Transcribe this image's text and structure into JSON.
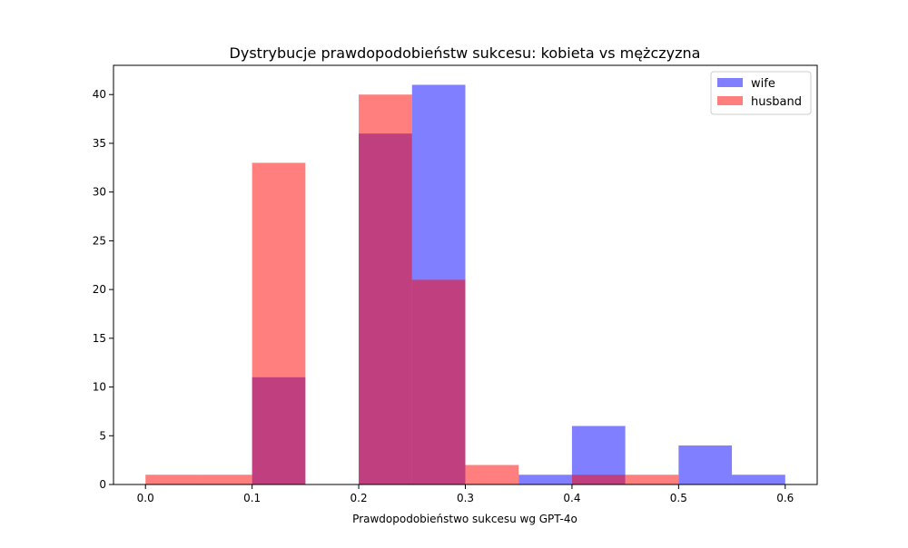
{
  "chart_data": {
    "type": "bar",
    "title": "Dystrybucje prawdopodobieństw sukcesu: kobieta vs mężczyzna",
    "xlabel": "Prawdopodobieństwo sukcesu wg GPT-4o",
    "ylabel": "",
    "xlim": [
      -0.03,
      0.63
    ],
    "ylim": [
      0,
      43
    ],
    "xticks": [
      0.0,
      0.1,
      0.2,
      0.3,
      0.4,
      0.5,
      0.6
    ],
    "xtick_labels": [
      "0.0",
      "0.1",
      "0.2",
      "0.3",
      "0.4",
      "0.5",
      "0.6"
    ],
    "yticks": [
      0,
      5,
      10,
      15,
      20,
      25,
      30,
      35,
      40
    ],
    "ytick_labels": [
      "0",
      "5",
      "10",
      "15",
      "20",
      "25",
      "30",
      "35",
      "40"
    ],
    "bin_edges": [
      0.0,
      0.05,
      0.1,
      0.15,
      0.2,
      0.25,
      0.3,
      0.35,
      0.4,
      0.45,
      0.5,
      0.55,
      0.6
    ],
    "legend_position": "top-right",
    "grid": false,
    "series": [
      {
        "name": "wife",
        "color": "#0000ff",
        "opacity": 0.5,
        "values": [
          0,
          0,
          11,
          0,
          36,
          41,
          0,
          1,
          6,
          0,
          4,
          1
        ]
      },
      {
        "name": "husband",
        "color": "#ff0000",
        "opacity": 0.5,
        "values": [
          1,
          1,
          33,
          0,
          40,
          21,
          2,
          0,
          1,
          1,
          0,
          0
        ]
      }
    ]
  }
}
